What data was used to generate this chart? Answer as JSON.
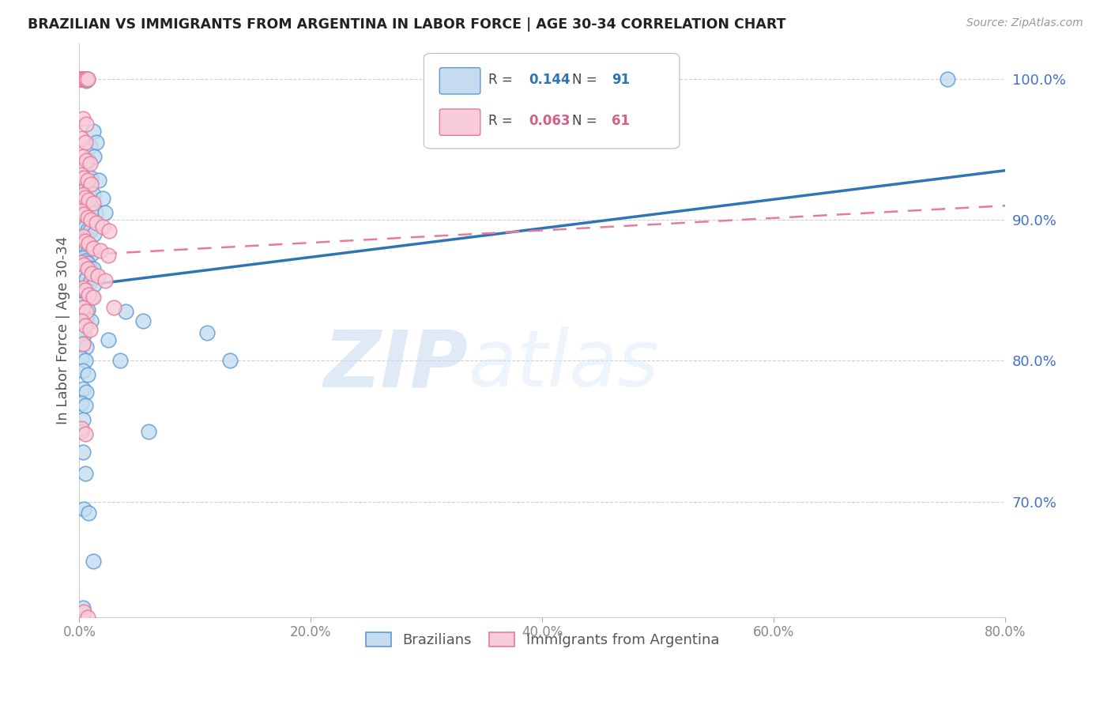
{
  "title": "BRAZILIAN VS IMMIGRANTS FROM ARGENTINA IN LABOR FORCE | AGE 30-34 CORRELATION CHART",
  "source": "Source: ZipAtlas.com",
  "ylabel": "In Labor Force | Age 30-34",
  "x_min": 0.0,
  "x_max": 0.8,
  "y_min": 0.618,
  "y_max": 1.025,
  "ytick_labels": [
    "70.0%",
    "80.0%",
    "90.0%",
    "100.0%"
  ],
  "ytick_values": [
    0.7,
    0.8,
    0.9,
    1.0
  ],
  "xtick_labels": [
    "0.0%",
    "20.0%",
    "40.0%",
    "60.0%",
    "80.0%"
  ],
  "xtick_values": [
    0.0,
    0.2,
    0.4,
    0.6,
    0.8
  ],
  "legend_entries": [
    {
      "label": "Brazilians",
      "R": "0.144",
      "N": "91"
    },
    {
      "label": "Immigrants from Argentina",
      "R": "0.063",
      "N": "61"
    }
  ],
  "blue_line_x": [
    0.0,
    0.8
  ],
  "blue_line_y": [
    0.853,
    0.935
  ],
  "pink_line_x": [
    0.0,
    0.8
  ],
  "pink_line_y": [
    0.875,
    0.91
  ],
  "watermark_zip": "ZIP",
  "watermark_atlas": "atlas",
  "blue_scatter": [
    [
      0.001,
      1.0
    ],
    [
      0.002,
      1.0
    ],
    [
      0.003,
      1.0
    ],
    [
      0.004,
      1.0
    ],
    [
      0.005,
      1.0
    ],
    [
      0.006,
      1.0
    ],
    [
      0.006,
      0.999
    ],
    [
      0.007,
      1.0
    ],
    [
      0.75,
      1.0
    ],
    [
      0.012,
      0.963
    ],
    [
      0.009,
      0.952
    ],
    [
      0.015,
      0.955
    ],
    [
      0.008,
      0.942
    ],
    [
      0.013,
      0.945
    ],
    [
      0.006,
      0.932
    ],
    [
      0.01,
      0.93
    ],
    [
      0.017,
      0.928
    ],
    [
      0.005,
      0.922
    ],
    [
      0.008,
      0.92
    ],
    [
      0.012,
      0.918
    ],
    [
      0.02,
      0.915
    ],
    [
      0.004,
      0.91
    ],
    [
      0.007,
      0.908
    ],
    [
      0.01,
      0.905
    ],
    [
      0.014,
      0.905
    ],
    [
      0.022,
      0.905
    ],
    [
      0.003,
      0.898
    ],
    [
      0.005,
      0.895
    ],
    [
      0.007,
      0.893
    ],
    [
      0.009,
      0.892
    ],
    [
      0.013,
      0.89
    ],
    [
      0.002,
      0.885
    ],
    [
      0.004,
      0.882
    ],
    [
      0.006,
      0.88
    ],
    [
      0.008,
      0.878
    ],
    [
      0.011,
      0.876
    ],
    [
      0.003,
      0.873
    ],
    [
      0.005,
      0.871
    ],
    [
      0.007,
      0.869
    ],
    [
      0.009,
      0.866
    ],
    [
      0.012,
      0.865
    ],
    [
      0.002,
      0.862
    ],
    [
      0.004,
      0.86
    ],
    [
      0.006,
      0.858
    ],
    [
      0.009,
      0.856
    ],
    [
      0.013,
      0.854
    ],
    [
      0.003,
      0.85
    ],
    [
      0.005,
      0.848
    ],
    [
      0.008,
      0.846
    ],
    [
      0.011,
      0.845
    ],
    [
      0.002,
      0.84
    ],
    [
      0.004,
      0.838
    ],
    [
      0.007,
      0.836
    ],
    [
      0.003,
      0.832
    ],
    [
      0.006,
      0.83
    ],
    [
      0.01,
      0.828
    ],
    [
      0.04,
      0.835
    ],
    [
      0.055,
      0.828
    ],
    [
      0.002,
      0.82
    ],
    [
      0.004,
      0.818
    ],
    [
      0.003,
      0.812
    ],
    [
      0.006,
      0.81
    ],
    [
      0.002,
      0.802
    ],
    [
      0.005,
      0.8
    ],
    [
      0.003,
      0.793
    ],
    [
      0.007,
      0.79
    ],
    [
      0.025,
      0.815
    ],
    [
      0.035,
      0.8
    ],
    [
      0.11,
      0.82
    ],
    [
      0.13,
      0.8
    ],
    [
      0.003,
      0.78
    ],
    [
      0.006,
      0.778
    ],
    [
      0.002,
      0.77
    ],
    [
      0.005,
      0.768
    ],
    [
      0.003,
      0.758
    ],
    [
      0.002,
      0.75
    ],
    [
      0.06,
      0.75
    ],
    [
      0.003,
      0.735
    ],
    [
      0.005,
      0.72
    ],
    [
      0.004,
      0.695
    ],
    [
      0.008,
      0.692
    ],
    [
      0.012,
      0.658
    ],
    [
      0.003,
      0.625
    ]
  ],
  "pink_scatter": [
    [
      0.001,
      1.0
    ],
    [
      0.002,
      1.0
    ],
    [
      0.003,
      1.0
    ],
    [
      0.004,
      1.0
    ],
    [
      0.005,
      1.0
    ],
    [
      0.006,
      1.0
    ],
    [
      0.007,
      1.0
    ],
    [
      0.003,
      0.972
    ],
    [
      0.006,
      0.968
    ],
    [
      0.002,
      0.958
    ],
    [
      0.005,
      0.955
    ],
    [
      0.003,
      0.945
    ],
    [
      0.006,
      0.942
    ],
    [
      0.009,
      0.94
    ],
    [
      0.002,
      0.932
    ],
    [
      0.004,
      0.93
    ],
    [
      0.007,
      0.928
    ],
    [
      0.01,
      0.925
    ],
    [
      0.003,
      0.918
    ],
    [
      0.005,
      0.916
    ],
    [
      0.008,
      0.914
    ],
    [
      0.012,
      0.912
    ],
    [
      0.002,
      0.906
    ],
    [
      0.004,
      0.904
    ],
    [
      0.007,
      0.902
    ],
    [
      0.01,
      0.9
    ],
    [
      0.015,
      0.898
    ],
    [
      0.02,
      0.895
    ],
    [
      0.026,
      0.892
    ],
    [
      0.003,
      0.888
    ],
    [
      0.005,
      0.885
    ],
    [
      0.008,
      0.883
    ],
    [
      0.012,
      0.88
    ],
    [
      0.018,
      0.878
    ],
    [
      0.025,
      0.875
    ],
    [
      0.002,
      0.87
    ],
    [
      0.004,
      0.868
    ],
    [
      0.007,
      0.865
    ],
    [
      0.011,
      0.862
    ],
    [
      0.016,
      0.86
    ],
    [
      0.022,
      0.857
    ],
    [
      0.003,
      0.852
    ],
    [
      0.005,
      0.85
    ],
    [
      0.008,
      0.847
    ],
    [
      0.012,
      0.845
    ],
    [
      0.003,
      0.838
    ],
    [
      0.006,
      0.835
    ],
    [
      0.002,
      0.828
    ],
    [
      0.005,
      0.825
    ],
    [
      0.009,
      0.822
    ],
    [
      0.03,
      0.838
    ],
    [
      0.003,
      0.812
    ],
    [
      0.002,
      0.752
    ],
    [
      0.005,
      0.748
    ],
    [
      0.004,
      0.622
    ],
    [
      0.007,
      0.618
    ]
  ]
}
